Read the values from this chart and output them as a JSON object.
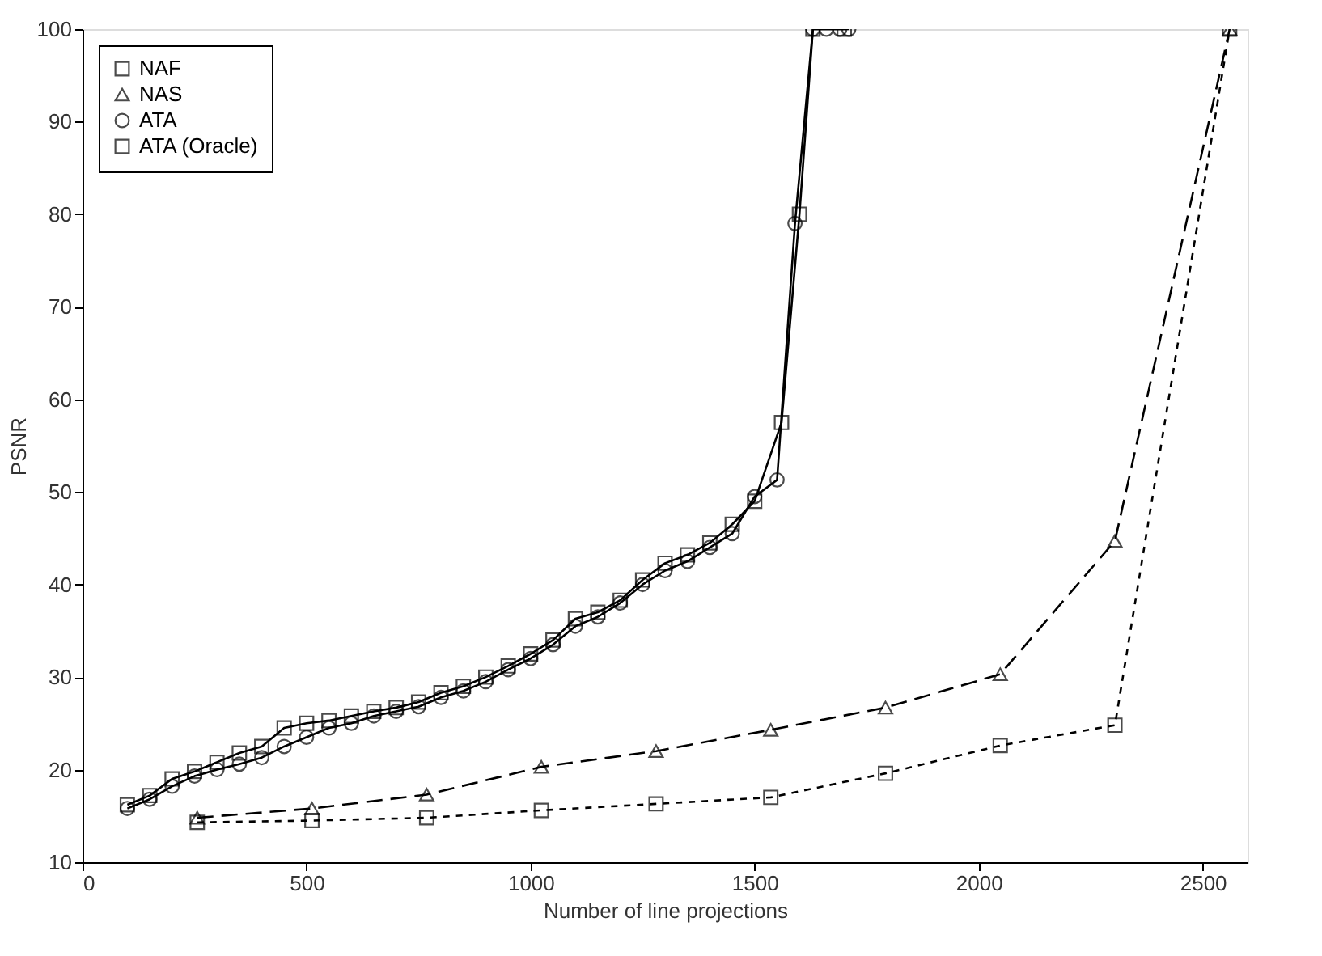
{
  "chart_data": {
    "type": "line",
    "xlabel": "Number of line projections",
    "ylabel": "PSNR",
    "xlim": [
      0,
      2600
    ],
    "ylim": [
      10,
      100
    ],
    "xticks": [
      0,
      500,
      1000,
      1500,
      2000,
      2500
    ],
    "yticks": [
      10,
      20,
      30,
      40,
      50,
      60,
      70,
      80,
      90,
      100
    ],
    "grid": false,
    "legend": "top left",
    "series": [
      {
        "name": "NAF",
        "color": "#000000",
        "marker": "square",
        "line_style": "dotted",
        "x": [
          256,
          512,
          768,
          1024,
          1280,
          1536,
          1792,
          2048,
          2304,
          2560
        ],
        "values": [
          14.3,
          14.5,
          14.8,
          15.6,
          16.3,
          17.0,
          19.6,
          22.6,
          24.8,
          100
        ]
      },
      {
        "name": "NAS",
        "color": "#000000",
        "marker": "triangle",
        "line_style": "dashed",
        "x": [
          256,
          512,
          768,
          1024,
          1280,
          1536,
          1792,
          2048,
          2304,
          2560
        ],
        "values": [
          14.8,
          15.8,
          17.3,
          20.3,
          22.0,
          24.3,
          26.7,
          30.3,
          44.7,
          100
        ]
      },
      {
        "name": "ATA",
        "color": "#000000",
        "marker": "circle",
        "line_style": "solid",
        "x": [
          100,
          150,
          200,
          250,
          300,
          350,
          400,
          450,
          500,
          550,
          600,
          650,
          700,
          750,
          800,
          850,
          900,
          950,
          1000,
          1050,
          1100,
          1150,
          1200,
          1250,
          1300,
          1350,
          1400,
          1450,
          1500,
          1550,
          1590,
          1630,
          1660,
          1690,
          1710
        ],
        "values": [
          15.8,
          16.8,
          18.2,
          19.3,
          20.0,
          20.6,
          21.3,
          22.5,
          23.5,
          24.5,
          25.0,
          25.8,
          26.3,
          26.8,
          27.8,
          28.5,
          29.5,
          30.8,
          32.0,
          33.5,
          35.5,
          36.5,
          38.0,
          40.0,
          41.5,
          42.5,
          44.0,
          45.5,
          49.5,
          51.3,
          79,
          100,
          100,
          100,
          100
        ]
      },
      {
        "name": "ATA (Oracle)",
        "color": "#000000",
        "marker": "square",
        "line_style": "solid",
        "x": [
          100,
          150,
          200,
          250,
          300,
          350,
          400,
          450,
          500,
          550,
          600,
          650,
          700,
          750,
          800,
          850,
          900,
          950,
          1000,
          1050,
          1100,
          1150,
          1200,
          1250,
          1300,
          1350,
          1400,
          1450,
          1500,
          1560,
          1600,
          1630,
          1700
        ],
        "values": [
          16.2,
          17.2,
          19.0,
          19.8,
          20.8,
          21.8,
          22.5,
          24.5,
          25.0,
          25.3,
          25.8,
          26.3,
          26.7,
          27.3,
          28.3,
          29.0,
          30.0,
          31.2,
          32.5,
          34.0,
          36.3,
          37.0,
          38.3,
          40.5,
          42.3,
          43.2,
          44.5,
          46.5,
          49.0,
          57.5,
          80,
          100,
          100
        ]
      }
    ]
  }
}
